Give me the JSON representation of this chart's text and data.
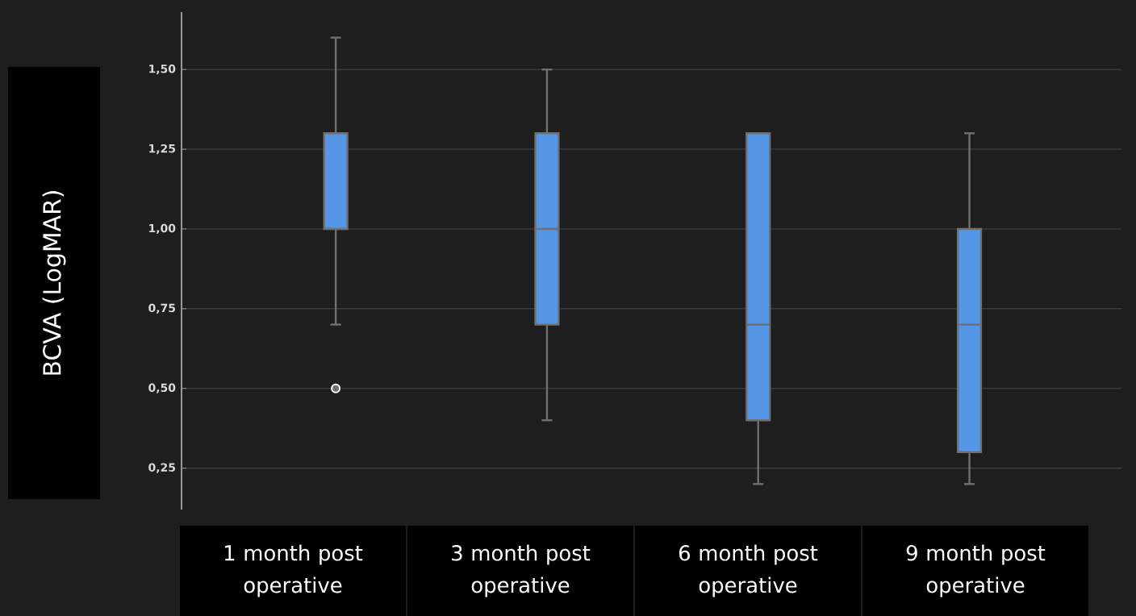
{
  "chart_data": {
    "type": "box",
    "ylabel": "BCVA (LogMAR)",
    "categories": [
      "1 month post operative",
      "3 month post operative",
      "6 month post operative",
      "9 month post operative"
    ],
    "boxes": [
      {
        "low": 0.7,
        "q1": 1.0,
        "median": 1.0,
        "q3": 1.3,
        "high": 1.6,
        "outliers": [
          0.5
        ]
      },
      {
        "low": 0.4,
        "q1": 0.7,
        "median": 1.0,
        "q3": 1.3,
        "high": 1.5
      },
      {
        "low": 0.2,
        "q1": 0.4,
        "median": 0.7,
        "q3": 1.3,
        "high": 1.3
      },
      {
        "low": 0.2,
        "q1": 0.3,
        "median": 0.7,
        "q3": 1.0,
        "high": 1.3
      }
    ],
    "color": "#5596e6",
    "ylim": [
      0.12,
      1.68
    ],
    "yticks": [
      {
        "value": 0.25,
        "label": "0,25"
      },
      {
        "value": 0.5,
        "label": "0,50"
      },
      {
        "value": 0.75,
        "label": "0,75"
      },
      {
        "value": 1.0,
        "label": "1,00"
      },
      {
        "value": 1.25,
        "label": "1,25"
      },
      {
        "value": 1.5,
        "label": "1,50"
      }
    ],
    "grid": "y"
  }
}
